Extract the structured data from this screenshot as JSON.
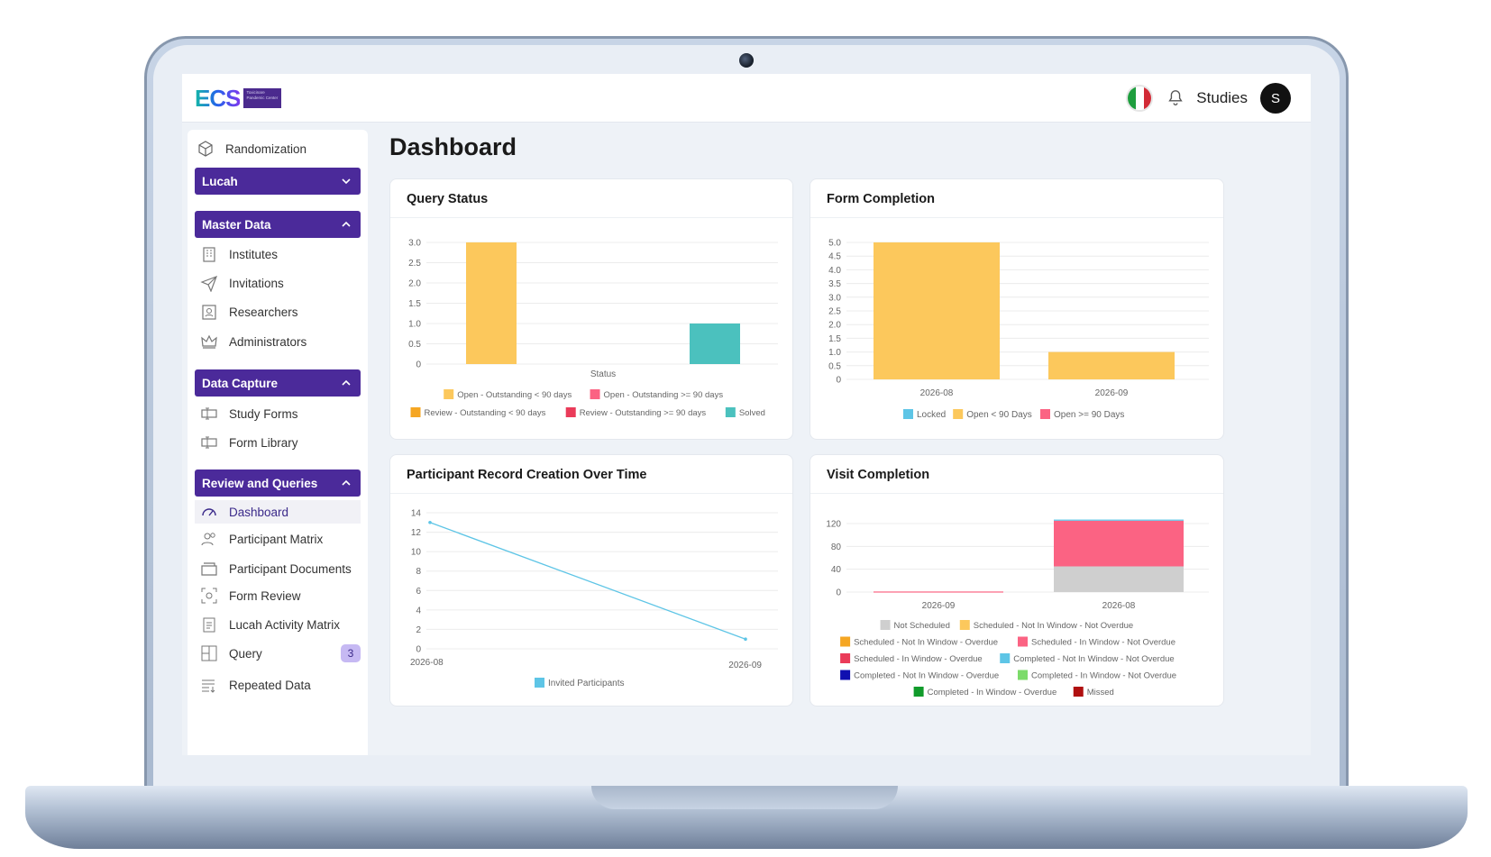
{
  "header": {
    "logo_text": "ECS",
    "logo_subtext": "Toxicinare Pandemic Center",
    "studies_label": "Studies",
    "avatar_letter": "S"
  },
  "sidebar": {
    "randomization": "Randomization",
    "study_select": "Lucah",
    "master_data": {
      "title": "Master Data",
      "items": [
        "Institutes",
        "Invitations",
        "Researchers",
        "Administrators"
      ]
    },
    "data_capture": {
      "title": "Data Capture",
      "items": [
        "Study Forms",
        "Form Library"
      ]
    },
    "review_queries": {
      "title": "Review and Queries",
      "items": [
        "Dashboard",
        "Participant Matrix",
        "Participant Documents",
        "Form Review",
        "Lucah Activity Matrix",
        "Query",
        "Repeated Data"
      ],
      "query_badge": "3"
    }
  },
  "page": {
    "title": "Dashboard"
  },
  "cards": {
    "query_status": "Query Status",
    "form_completion": "Form Completion",
    "participant_record": "Participant Record Creation Over Time",
    "visit_completion": "Visit Completion"
  },
  "colors": {
    "accent": "#4b2a9a",
    "yellow": "#fcc85c",
    "pink": "#fb6383",
    "teal": "#4bc1be",
    "lightblue": "#5ec5e6"
  },
  "chart_data": [
    {
      "type": "bar",
      "title": "Query Status",
      "xlabel": "Status",
      "ylim": [
        0,
        3
      ],
      "yticks": [
        "0",
        "0.5",
        "1.0",
        "1.5",
        "2.0",
        "2.5",
        "3.0"
      ],
      "series": [
        {
          "name": "Open - Outstanding < 90 days",
          "color": "#fcc85c",
          "value": 3
        },
        {
          "name": "Open - Outstanding >= 90 days",
          "color": "#fb6383",
          "value": 0
        },
        {
          "name": "Review - Outstanding < 90 days",
          "color": "#f5a623",
          "value": 0
        },
        {
          "name": "Review - Outstanding >= 90 days",
          "color": "#ea3b59",
          "value": 0
        },
        {
          "name": "Solved",
          "color": "#4bc1be",
          "value": 1
        }
      ]
    },
    {
      "type": "bar",
      "title": "Form Completion",
      "categories": [
        "2026-08",
        "2026-09"
      ],
      "ylim": [
        0,
        5
      ],
      "yticks": [
        "0",
        "0.5",
        "1.0",
        "1.5",
        "2.0",
        "2.5",
        "3.0",
        "3.5",
        "4.0",
        "4.5",
        "5.0"
      ],
      "series": [
        {
          "name": "Locked",
          "color": "#5ec5e6",
          "values": [
            0,
            0
          ]
        },
        {
          "name": "Open < 90 Days",
          "color": "#fcc85c",
          "values": [
            5,
            1
          ]
        },
        {
          "name": "Open >= 90 Days",
          "color": "#fb6383",
          "values": [
            0,
            0
          ]
        }
      ]
    },
    {
      "type": "line",
      "title": "Participant Record Creation Over Time",
      "x": [
        "2026-08",
        "2026-09"
      ],
      "ylim": [
        0,
        14
      ],
      "yticks": [
        "0",
        "2",
        "4",
        "6",
        "8",
        "10",
        "12",
        "14"
      ],
      "series": [
        {
          "name": "Invited Participants",
          "color": "#5ec5e6",
          "values": [
            13,
            1
          ]
        }
      ]
    },
    {
      "type": "bar",
      "title": "Visit Completion",
      "categories": [
        "2026-09",
        "2026-08"
      ],
      "ylim": [
        0,
        120
      ],
      "yticks": [
        "0",
        "40",
        "80",
        "120"
      ],
      "series": [
        {
          "name": "Not Scheduled",
          "color": "#cfcfcf",
          "values": [
            0,
            45
          ]
        },
        {
          "name": "Scheduled - Not In Window - Not Overdue",
          "color": "#fcc85c",
          "values": [
            0,
            0
          ]
        },
        {
          "name": "Scheduled - Not In Window - Overdue",
          "color": "#f5a623",
          "values": [
            0,
            0
          ]
        },
        {
          "name": "Scheduled - In Window - Not Overdue",
          "color": "#fb6383",
          "values": [
            1,
            80
          ]
        },
        {
          "name": "Scheduled - In Window - Overdue",
          "color": "#ea3b59",
          "values": [
            0,
            0
          ]
        },
        {
          "name": "Completed - Not In Window - Not Overdue",
          "color": "#5ec5e6",
          "values": [
            0,
            2
          ]
        },
        {
          "name": "Completed - Not In Window - Overdue",
          "color": "#1010b0",
          "values": [
            0,
            0
          ]
        },
        {
          "name": "Completed - In Window - Not Overdue",
          "color": "#7cdb6a",
          "values": [
            0,
            0
          ]
        },
        {
          "name": "Completed - In Window - Overdue",
          "color": "#119b2b",
          "values": [
            0,
            0
          ]
        },
        {
          "name": "Missed",
          "color": "#b01010",
          "values": [
            0,
            0
          ]
        }
      ]
    }
  ]
}
